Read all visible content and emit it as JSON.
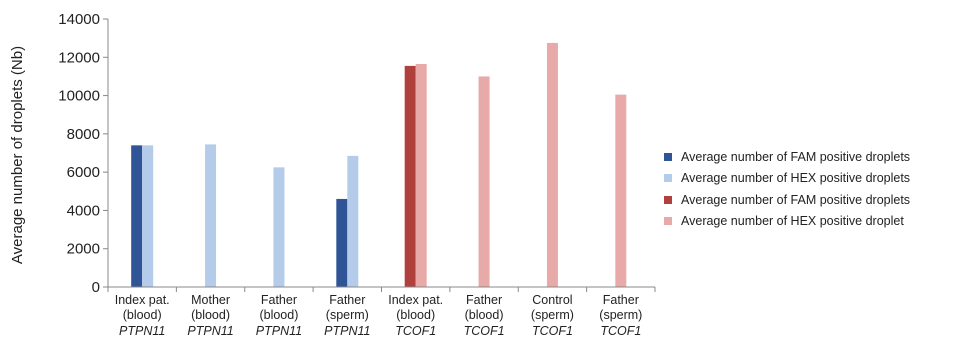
{
  "chart_data": {
    "type": "bar",
    "ylabel": "Average number of droplets (Nb)",
    "xlabel": "",
    "ylim": [
      0,
      14000
    ],
    "yticks": [
      0,
      2000,
      4000,
      6000,
      8000,
      10000,
      12000,
      14000
    ],
    "grid": false,
    "legend_position": "right",
    "categories": [
      {
        "line1": "Index pat.",
        "line2": "(blood)",
        "gene": "PTPN11"
      },
      {
        "line1": "Mother",
        "line2": "(blood)",
        "gene": "PTPN11"
      },
      {
        "line1": "Father",
        "line2": "(blood)",
        "gene": "PTPN11"
      },
      {
        "line1": "Father",
        "line2": "(sperm)",
        "gene": "PTPN11"
      },
      {
        "line1": "Index pat.",
        "line2": "(blood)",
        "gene": "TCOF1"
      },
      {
        "line1": "Father",
        "line2": "(blood)",
        "gene": "TCOF1"
      },
      {
        "line1": "Control",
        "line2": "(sperm)",
        "gene": "TCOF1"
      },
      {
        "line1": "Father",
        "line2": "(sperm)",
        "gene": "TCOF1"
      }
    ],
    "series": [
      {
        "name": "Average number of FAM positive droplets",
        "color": "#2f5597",
        "values": [
          7400,
          null,
          null,
          4600,
          null,
          null,
          null,
          null
        ]
      },
      {
        "name": "Average number of HEX positive droplets",
        "color": "#b4cbea",
        "values": [
          7400,
          7450,
          6250,
          6850,
          null,
          null,
          null,
          null
        ]
      },
      {
        "name": "Average number of FAM positive droplets",
        "color": "#b0403b",
        "values": [
          null,
          null,
          null,
          null,
          11550,
          null,
          null,
          null
        ]
      },
      {
        "name": "Average number of HEX positive droplet",
        "color": "#e8aaa8",
        "values": [
          null,
          null,
          null,
          null,
          11650,
          11000,
          12750,
          10050
        ]
      }
    ]
  }
}
